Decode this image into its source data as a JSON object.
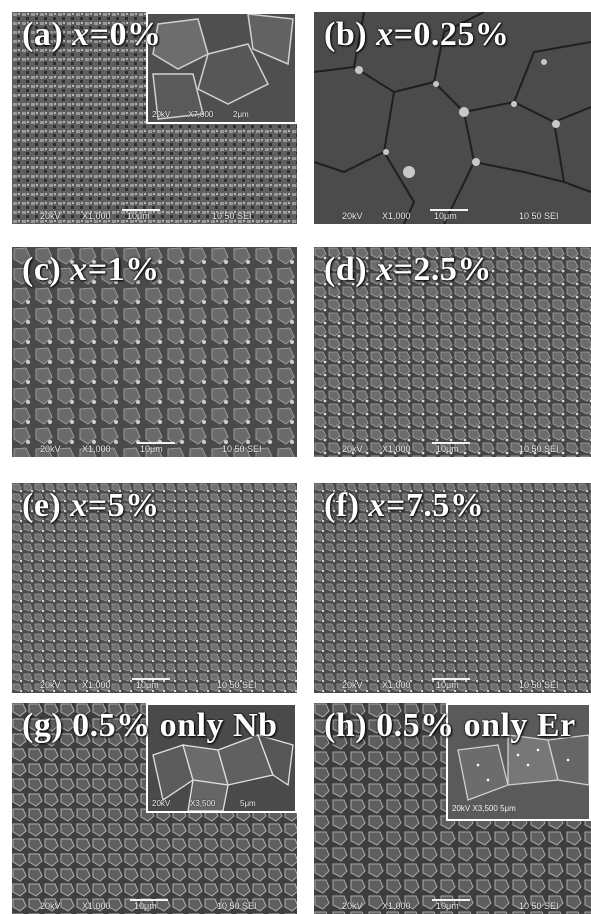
{
  "panels": [
    {
      "id": "a",
      "label_prefix": "(a) ",
      "label_var": "x",
      "label_rest": "=0%",
      "sem": {
        "kv": "20kV",
        "mag": "X1,000",
        "scale": "10μm",
        "info": "10 50 SEI"
      },
      "inset": {
        "kv": "20kV",
        "mag": "X7,000",
        "scale": "2μm"
      }
    },
    {
      "id": "b",
      "label_prefix": "(b) ",
      "label_var": "x",
      "label_rest": "=0.25%",
      "sem": {
        "kv": "20kV",
        "mag": "X1,000",
        "scale": "10μm",
        "info": "10 50 SEI"
      }
    },
    {
      "id": "c",
      "label_prefix": "(c) ",
      "label_var": "x",
      "label_rest": "=1%",
      "sem": {
        "kv": "20kV",
        "mag": "X1,000",
        "scale": "10μm",
        "info": "10 50 SEI"
      }
    },
    {
      "id": "d",
      "label_prefix": "(d) ",
      "label_var": "x",
      "label_rest": "=2.5%",
      "sem": {
        "kv": "20kV",
        "mag": "X1,000",
        "scale": "10μm",
        "info": "10 50 SEI"
      }
    },
    {
      "id": "e",
      "label_prefix": "(e) ",
      "label_var": "x",
      "label_rest": "=5%",
      "sem": {
        "kv": "20kV",
        "mag": "X1,000",
        "scale": "10μm",
        "info": "10 50 SEI"
      }
    },
    {
      "id": "f",
      "label_prefix": "(f) ",
      "label_var": "x",
      "label_rest": "=7.5%",
      "sem": {
        "kv": "20kV",
        "mag": "X1,000",
        "scale": "10μm",
        "info": "10 50 SEI"
      }
    },
    {
      "id": "g",
      "label_prefix": "(g) ",
      "label_var": "",
      "label_rest": "0.5% only Nb",
      "sem": {
        "kv": "20kV",
        "mag": "X1,000",
        "scale": "10μm",
        "info": "10 50 SEI"
      },
      "inset": {
        "kv": "20kV",
        "mag": "X3,500",
        "scale": "5μm"
      }
    },
    {
      "id": "h",
      "label_prefix": "(h) ",
      "label_var": "",
      "label_rest": "0.5% only Er",
      "sem": {
        "kv": "20kV",
        "mag": "X1,000",
        "scale": "10μm",
        "info": "10 50 SEI"
      },
      "inset": {
        "kv": "20kV",
        "mag": "X3,500",
        "scale": "5μm"
      }
    }
  ]
}
